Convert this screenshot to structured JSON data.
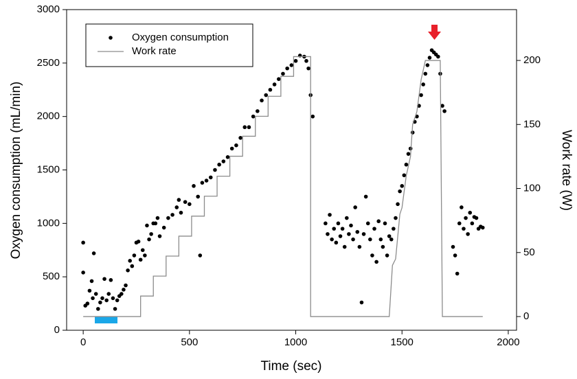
{
  "chart_data": {
    "type": "scatter",
    "xlabel": "Time (sec)",
    "ylabel": "Oxygen consumption (mL/min)",
    "y2label": "Work rate (W)",
    "xlim": [
      -78,
      2039
    ],
    "xticks": [
      0,
      500,
      1000,
      1500,
      2000
    ],
    "ylim": [
      0,
      3000
    ],
    "yticks": [
      0,
      500,
      1000,
      1500,
      2000,
      2500,
      3000
    ],
    "y2lim": [
      -10.7,
      239.7
    ],
    "y2ticks": [
      0,
      50,
      100,
      150,
      200
    ],
    "grid": false,
    "legend": "upper left",
    "series": [
      {
        "name": "Oxygen consumption",
        "color": "#000000",
        "mode": "markers",
        "x": [
          0,
          0,
          10,
          20,
          30,
          40,
          45,
          50,
          60,
          70,
          80,
          90,
          100,
          110,
          120,
          130,
          140,
          150,
          160,
          170,
          180,
          190,
          200,
          210,
          220,
          230,
          240,
          250,
          260,
          270,
          280,
          290,
          300,
          310,
          320,
          330,
          340,
          350,
          360,
          380,
          400,
          420,
          440,
          450,
          460,
          480,
          500,
          520,
          540,
          550,
          560,
          580,
          600,
          620,
          640,
          660,
          680,
          700,
          720,
          740,
          760,
          780,
          800,
          820,
          840,
          860,
          880,
          900,
          920,
          940,
          960,
          980,
          1000,
          1020,
          1040,
          1050,
          1060,
          1070,
          1080,
          1140,
          1150,
          1160,
          1170,
          1180,
          1190,
          1200,
          1210,
          1220,
          1230,
          1240,
          1250,
          1260,
          1270,
          1280,
          1290,
          1300,
          1310,
          1320,
          1330,
          1340,
          1350,
          1360,
          1370,
          1380,
          1390,
          1400,
          1410,
          1420,
          1430,
          1440,
          1450,
          1460,
          1470,
          1480,
          1490,
          1500,
          1510,
          1520,
          1530,
          1540,
          1550,
          1560,
          1570,
          1580,
          1590,
          1600,
          1610,
          1620,
          1630,
          1640,
          1650,
          1660,
          1670,
          1680,
          1690,
          1700,
          1740,
          1750,
          1760,
          1770,
          1780,
          1790,
          1800,
          1810,
          1820,
          1830,
          1840,
          1850,
          1860,
          1870,
          1880
        ],
        "values": [
          820,
          540,
          230,
          250,
          370,
          460,
          300,
          720,
          340,
          200,
          260,
          300,
          480,
          280,
          340,
          470,
          300,
          200,
          280,
          320,
          340,
          380,
          420,
          560,
          650,
          600,
          700,
          820,
          830,
          660,
          750,
          700,
          980,
          850,
          900,
          1000,
          1000,
          1050,
          880,
          960,
          1050,
          1080,
          1150,
          1220,
          1100,
          1200,
          1180,
          1350,
          1250,
          700,
          1380,
          1400,
          1430,
          1500,
          1550,
          1580,
          1620,
          1700,
          1730,
          1800,
          1900,
          1900,
          2000,
          2050,
          2150,
          2200,
          2250,
          2300,
          2350,
          2400,
          2450,
          2480,
          2520,
          2570,
          2560,
          2520,
          2450,
          2200,
          2000,
          1000,
          900,
          1080,
          850,
          950,
          820,
          1000,
          880,
          950,
          780,
          1050,
          900,
          980,
          850,
          1150,
          920,
          780,
          260,
          900,
          1250,
          1000,
          850,
          700,
          950,
          640,
          1020,
          850,
          780,
          1000,
          700,
          880,
          850,
          950,
          1050,
          1180,
          1300,
          1350,
          1450,
          1550,
          1650,
          1700,
          1850,
          1950,
          2000,
          2100,
          2200,
          2300,
          2400,
          2480,
          2550,
          2620,
          2600,
          2580,
          2560,
          2400,
          2100,
          2050,
          780,
          700,
          530,
          1000,
          1150,
          950,
          1050,
          900,
          1100,
          1000,
          1060,
          1050,
          950,
          970,
          960
        ]
      },
      {
        "name": "Work rate",
        "color": "#8c8c8c",
        "mode": "lines",
        "axis": "y2",
        "x": [
          0,
          270,
          270,
          330,
          330,
          390,
          390,
          450,
          450,
          510,
          510,
          570,
          570,
          630,
          630,
          690,
          690,
          750,
          750,
          810,
          810,
          870,
          870,
          930,
          930,
          990,
          990,
          1070,
          1070,
          1440,
          1455,
          1470,
          1490,
          1500,
          1520,
          1540,
          1550,
          1570,
          1590,
          1610,
          1680,
          1690,
          1880
        ],
        "values": [
          0,
          0,
          16,
          16,
          31.6,
          31.6,
          47.2,
          47.2,
          62.8,
          62.8,
          78.4,
          78.4,
          94,
          94,
          109.6,
          109.6,
          125.2,
          125.2,
          140.8,
          140.8,
          156.4,
          156.4,
          172,
          172,
          187.6,
          187.6,
          203,
          203,
          0,
          0,
          40,
          45,
          80,
          85,
          110,
          125,
          150,
          160,
          185,
          200,
          200,
          0,
          0
        ]
      }
    ]
  }
}
